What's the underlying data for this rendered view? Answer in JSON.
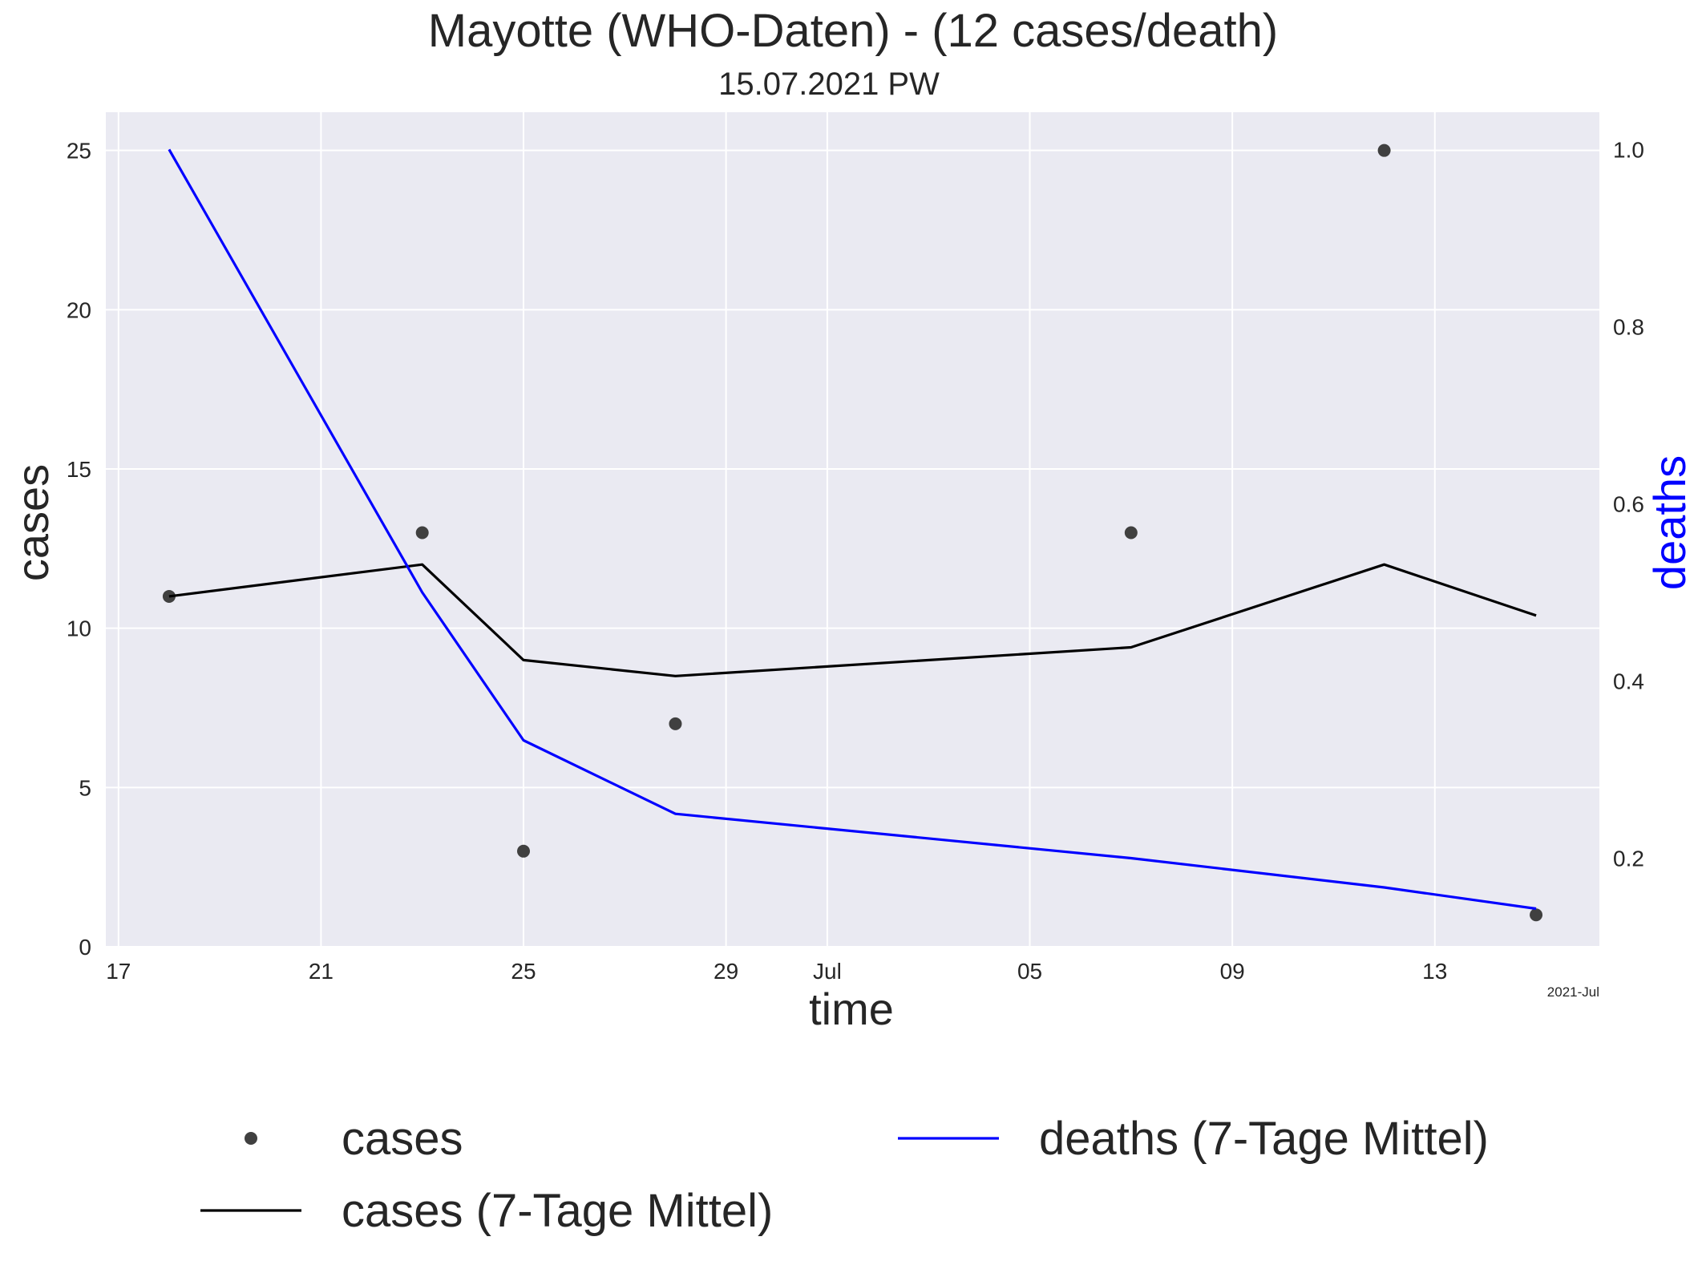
{
  "chart_data": {
    "type": "line",
    "title": "Mayotte (WHO-Daten) - (12 cases/death)",
    "subtitle": "15.07.2021 PW",
    "xlabel": "time",
    "ylabel_left": "cases",
    "ylabel_right": "deaths",
    "x_offset_label": "2021-Jul",
    "x_ticks": [
      {
        "date": "2021-06-17",
        "label": "17"
      },
      {
        "date": "2021-06-21",
        "label": "21"
      },
      {
        "date": "2021-06-25",
        "label": "25"
      },
      {
        "date": "2021-06-29",
        "label": "29"
      },
      {
        "date": "2021-07-01",
        "label": "Jul"
      },
      {
        "date": "2021-07-05",
        "label": "05"
      },
      {
        "date": "2021-07-09",
        "label": "09"
      },
      {
        "date": "2021-07-13",
        "label": "13"
      }
    ],
    "xlim": [
      "2021-06-16T18:00",
      "2021-07-16T06:00"
    ],
    "ylim_left": [
      0,
      26.2
    ],
    "ylim_right": [
      0.1,
      1.042
    ],
    "y_ticks_left": [
      0,
      5,
      10,
      15,
      20,
      25
    ],
    "y_ticks_right": [
      0.2,
      0.4,
      0.6,
      0.8,
      1.0
    ],
    "grid": true,
    "legend_position": "bottom",
    "series": [
      {
        "name": "cases",
        "style": "points",
        "axis": "left",
        "color": "#404040",
        "points": [
          [
            "2021-06-18",
            11
          ],
          [
            "2021-06-23",
            13
          ],
          [
            "2021-06-25",
            3
          ],
          [
            "2021-06-28",
            7
          ],
          [
            "2021-07-07",
            13
          ],
          [
            "2021-07-12",
            25
          ],
          [
            "2021-07-15",
            1
          ]
        ]
      },
      {
        "name": "cases (7-Tage Mittel)",
        "style": "line",
        "axis": "left",
        "color": "#000000",
        "points": [
          [
            "2021-06-18",
            11
          ],
          [
            "2021-06-23",
            12
          ],
          [
            "2021-06-25",
            9
          ],
          [
            "2021-06-28",
            8.5
          ],
          [
            "2021-07-07",
            9.4
          ],
          [
            "2021-07-12",
            12
          ],
          [
            "2021-07-15",
            10.4
          ]
        ]
      },
      {
        "name": "deaths (7-Tage Mittel)",
        "style": "line",
        "axis": "right",
        "color": "#0000ff",
        "points": [
          [
            "2021-06-18",
            1.0
          ],
          [
            "2021-06-23",
            0.5
          ],
          [
            "2021-06-25",
            0.333
          ],
          [
            "2021-06-28",
            0.25
          ],
          [
            "2021-07-07",
            0.2
          ],
          [
            "2021-07-12",
            0.167
          ],
          [
            "2021-07-15",
            0.143
          ]
        ]
      }
    ],
    "colors": {
      "plot_background": "#eaeaf2",
      "grid": "#ffffff",
      "deaths_label": "#0000ff"
    }
  }
}
